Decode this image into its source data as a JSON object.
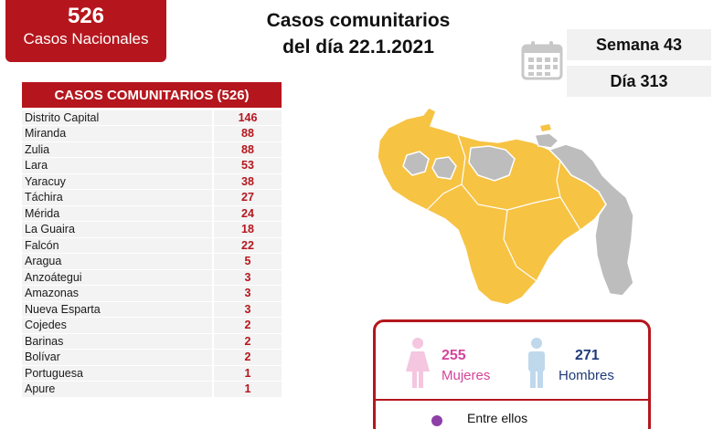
{
  "national": {
    "count": "526",
    "label": "Casos Nacionales"
  },
  "title": {
    "line1": "Casos comunitarios",
    "line2": "del día 22.1.2021"
  },
  "calendar": {
    "icon": "calendar-icon",
    "week": "Semana 43",
    "day": "Día 313"
  },
  "table": {
    "header": "CASOS COMUNITARIOS (526)",
    "rows": [
      {
        "name": "Distrito Capital",
        "value": "146"
      },
      {
        "name": "Miranda",
        "value": "88"
      },
      {
        "name": "Zulia",
        "value": "88"
      },
      {
        "name": "Lara",
        "value": "53"
      },
      {
        "name": "Yaracuy",
        "value": "38"
      },
      {
        "name": "Táchira",
        "value": "27"
      },
      {
        "name": "Mérida",
        "value": "24"
      },
      {
        "name": "La Guaira",
        "value": "18"
      },
      {
        "name": "Falcón",
        "value": "22"
      },
      {
        "name": "Aragua",
        "value": "5"
      },
      {
        "name": "Anzoátegui",
        "value": "3"
      },
      {
        "name": "Amazonas",
        "value": "3"
      },
      {
        "name": "Nueva Esparta",
        "value": "3"
      },
      {
        "name": "Cojedes",
        "value": "2"
      },
      {
        "name": "Barinas",
        "value": "2"
      },
      {
        "name": "Bolívar",
        "value": "2"
      },
      {
        "name": "Portuguesa",
        "value": "1"
      },
      {
        "name": "Apure",
        "value": "1"
      }
    ]
  },
  "map": {
    "affected_color": "#f6c343",
    "unaffected_color": "#bdbdbd"
  },
  "stats": {
    "women_count": "255",
    "women_label": "Mujeres",
    "men_count": "271",
    "men_label": "Hombres",
    "among_label": "Entre ellos"
  },
  "colors": {
    "accent": "#b5161d",
    "women": "#d4449b",
    "men": "#1f3a7a"
  }
}
